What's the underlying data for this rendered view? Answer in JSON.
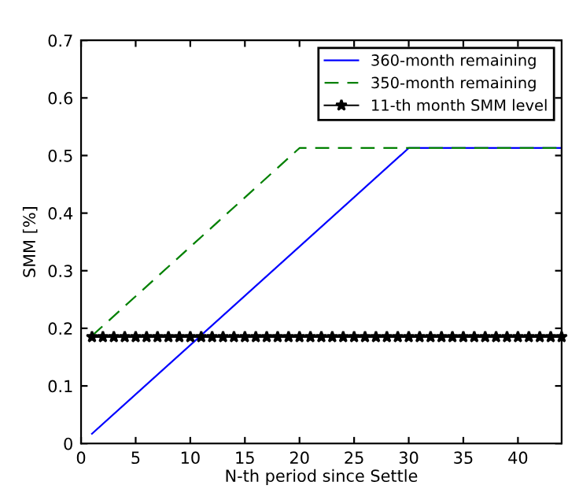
{
  "chart_data": {
    "type": "line",
    "xlabel": "N-th period since Settle",
    "ylabel": "SMM [%]",
    "xlim": [
      0,
      44
    ],
    "xticks": [
      0,
      5,
      10,
      15,
      20,
      25,
      30,
      35,
      40
    ],
    "ylim": [
      0,
      0.7
    ],
    "yticks": [
      0,
      0.1,
      0.2,
      0.3,
      0.4,
      0.5,
      0.6,
      0.7
    ],
    "grid": false,
    "legend": "top right",
    "series": [
      {
        "name": "360-month remaining",
        "color": "#0000ff",
        "x": [
          1,
          30,
          44
        ],
        "values": [
          0.017,
          0.513,
          0.513
        ],
        "line_style": "solid",
        "marker": "none"
      },
      {
        "name": "350-month remaining",
        "color": "#008000",
        "x": [
          1,
          20,
          44
        ],
        "values": [
          0.187,
          0.513,
          0.513
        ],
        "line_style": "dashed",
        "marker": "none"
      },
      {
        "name": "11-th month SMM level",
        "color": "#000000",
        "x": [
          1,
          2,
          3,
          4,
          5,
          6,
          7,
          8,
          9,
          10,
          11,
          12,
          13,
          14,
          15,
          16,
          17,
          18,
          19,
          20,
          21,
          22,
          23,
          24,
          25,
          26,
          27,
          28,
          29,
          30,
          31,
          32,
          33,
          34,
          35,
          36,
          37,
          38,
          39,
          40,
          41,
          42,
          43,
          44
        ],
        "values": [
          0.185,
          0.185,
          0.185,
          0.185,
          0.185,
          0.185,
          0.185,
          0.185,
          0.185,
          0.185,
          0.185,
          0.185,
          0.185,
          0.185,
          0.185,
          0.185,
          0.185,
          0.185,
          0.185,
          0.185,
          0.185,
          0.185,
          0.185,
          0.185,
          0.185,
          0.185,
          0.185,
          0.185,
          0.185,
          0.185,
          0.185,
          0.185,
          0.185,
          0.185,
          0.185,
          0.185,
          0.185,
          0.185,
          0.185,
          0.185,
          0.185,
          0.185,
          0.185,
          0.185
        ],
        "line_style": "solid",
        "marker": "star"
      }
    ]
  }
}
